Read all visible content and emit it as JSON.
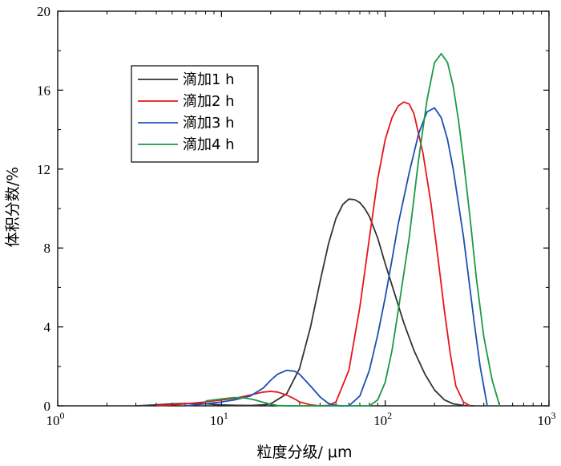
{
  "chart_data": {
    "type": "line",
    "xlabel": "粒度分级/ μm",
    "ylabel": "体积分数/%",
    "xscale": "log",
    "xlim": [
      1,
      1000
    ],
    "ylim": [
      0,
      20
    ],
    "xticks": [
      1,
      10,
      100,
      1000
    ],
    "xtick_labels": [
      {
        "base": "10",
        "exp": "0"
      },
      {
        "base": "10",
        "exp": "1"
      },
      {
        "base": "10",
        "exp": "2"
      },
      {
        "base": "10",
        "exp": "3"
      }
    ],
    "yticks": [
      0,
      4,
      8,
      12,
      16,
      20
    ],
    "ytick_labels": [
      "0",
      "4",
      "8",
      "12",
      "16",
      "20"
    ],
    "legend_position": "upper-left",
    "series": [
      {
        "name": "滴加1 h",
        "color": "#333333",
        "x": [
          3,
          4,
          5,
          6,
          8,
          10,
          12,
          15,
          18,
          20,
          25,
          30,
          35,
          40,
          45,
          50,
          55,
          60,
          65,
          70,
          75,
          80,
          90,
          100,
          115,
          130,
          150,
          175,
          200,
          230,
          260,
          300,
          350
        ],
        "y": [
          0,
          0.05,
          0.1,
          0.12,
          0.1,
          0.05,
          0.03,
          0.02,
          0.05,
          0.1,
          0.6,
          1.9,
          4.0,
          6.3,
          8.2,
          9.5,
          10.2,
          10.48,
          10.45,
          10.3,
          10.0,
          9.6,
          8.5,
          7.2,
          5.6,
          4.2,
          2.8,
          1.6,
          0.8,
          0.3,
          0.1,
          0.02,
          0
        ]
      },
      {
        "name": "滴加2 h",
        "color": "#e8141c",
        "x": [
          4,
          5,
          6,
          7,
          8,
          10,
          12,
          15,
          18,
          20,
          22,
          25,
          28,
          30,
          35,
          40,
          45,
          50,
          60,
          70,
          80,
          90,
          100,
          110,
          120,
          130,
          140,
          150,
          170,
          190,
          210,
          230,
          250,
          270,
          300,
          330
        ],
        "y": [
          0,
          0.05,
          0.1,
          0.15,
          0.2,
          0.3,
          0.38,
          0.55,
          0.7,
          0.73,
          0.7,
          0.55,
          0.35,
          0.2,
          0.05,
          0,
          0.02,
          0.2,
          1.8,
          5.0,
          8.5,
          11.5,
          13.5,
          14.6,
          15.2,
          15.4,
          15.3,
          14.8,
          12.8,
          10.3,
          7.5,
          4.8,
          2.6,
          1.0,
          0.2,
          0
        ]
      },
      {
        "name": "滴加3 h",
        "color": "#1c4fb4",
        "x": [
          6,
          8,
          10,
          12,
          15,
          18,
          20,
          22,
          25,
          28,
          30,
          35,
          40,
          45,
          50,
          55,
          60,
          70,
          80,
          90,
          100,
          110,
          120,
          140,
          160,
          180,
          200,
          220,
          240,
          260,
          300,
          350,
          380,
          420
        ],
        "y": [
          0,
          0.1,
          0.2,
          0.3,
          0.5,
          0.9,
          1.3,
          1.6,
          1.8,
          1.75,
          1.6,
          1.0,
          0.45,
          0.12,
          0.02,
          0,
          0,
          0.5,
          1.8,
          3.6,
          5.5,
          7.4,
          9.2,
          11.8,
          13.8,
          14.9,
          15.1,
          14.6,
          13.5,
          12.0,
          8.6,
          4.2,
          2.0,
          0
        ]
      },
      {
        "name": "滴加4 h",
        "color": "#1a9a45",
        "x": [
          8,
          10,
          12,
          14,
          16,
          18,
          20,
          22,
          25,
          80,
          90,
          100,
          110,
          120,
          140,
          160,
          180,
          200,
          220,
          240,
          260,
          280,
          300,
          330,
          360,
          400,
          450,
          500
        ],
        "y": [
          0.25,
          0.35,
          0.42,
          0.4,
          0.3,
          0.18,
          0.08,
          0.02,
          0,
          0,
          0.3,
          1.2,
          2.8,
          4.8,
          8.5,
          12.5,
          15.5,
          17.4,
          17.85,
          17.4,
          16.2,
          14.5,
          12.5,
          9.5,
          6.5,
          3.5,
          1.3,
          0
        ]
      }
    ]
  }
}
